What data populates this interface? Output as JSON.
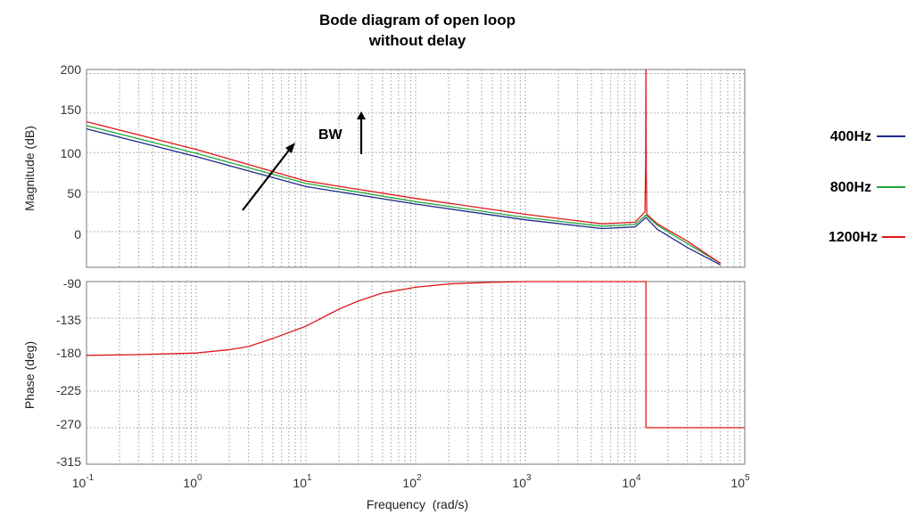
{
  "chart_data": [
    {
      "type": "line",
      "title_lines": [
        "Bode diagram of open loop",
        "without delay"
      ],
      "xlabel": "Frequency  (rad/s)",
      "ylabel": "Magnitude (dB)",
      "xscale": "log",
      "xlim": [
        0.1,
        100000
      ],
      "ylim": [
        -45,
        205
      ],
      "yticks": [
        "200",
        "150",
        "100",
        "50",
        "0"
      ],
      "grid": "dotted",
      "legend_position": "right",
      "series": [
        {
          "name": "400Hz",
          "color": "#1f2a8a",
          "x": [
            0.1,
            1,
            10,
            100,
            1000,
            5000,
            10000,
            12566,
            16000,
            30000,
            60000
          ],
          "y": [
            130,
            95,
            57,
            35,
            15,
            4,
            6,
            18,
            3,
            -20,
            -42
          ]
        },
        {
          "name": "800Hz",
          "color": "#22a83a",
          "x": [
            0.1,
            1,
            10,
            100,
            1000,
            5000,
            10000,
            12566,
            16000,
            30000,
            60000
          ],
          "y": [
            134,
            99,
            61,
            38,
            18,
            7,
            9,
            21,
            8,
            -15,
            -40
          ]
        },
        {
          "name": "1200Hz",
          "color": "#e01818",
          "x": [
            0.1,
            1,
            10,
            100,
            1000,
            5000,
            10000,
            12300,
            12500,
            12566,
            12650,
            12800,
            16000,
            30000,
            60000
          ],
          "y": [
            139,
            104,
            64,
            42,
            22,
            10,
            12,
            25,
            85,
            205,
            75,
            22,
            10,
            -12,
            -40
          ]
        }
      ],
      "annotations": [
        "BW"
      ]
    },
    {
      "type": "line",
      "xlabel": "Frequency  (rad/s)",
      "ylabel": "Phase (deg)",
      "xscale": "log",
      "xlim": [
        0.1,
        100000
      ],
      "xticks": [
        {
          "base": "10",
          "exp": "-1"
        },
        {
          "base": "10",
          "exp": "0"
        },
        {
          "base": "10",
          "exp": "1"
        },
        {
          "base": "10",
          "exp": "2"
        },
        {
          "base": "10",
          "exp": "3"
        },
        {
          "base": "10",
          "exp": "4"
        },
        {
          "base": "10",
          "exp": "5"
        }
      ],
      "ylim": [
        -315,
        -90
      ],
      "yticks": [
        "-90",
        "-135",
        "-180",
        "-225",
        "-270",
        "-315"
      ],
      "grid": "dotted",
      "series": [
        {
          "color": "#e01818",
          "x": [
            0.1,
            0.3,
            1,
            2,
            3,
            5,
            10,
            20,
            30,
            50,
            100,
            200,
            300,
            500,
            1000,
            5000,
            12566,
            12566,
            100000
          ],
          "y": [
            -181,
            -180,
            -178,
            -174,
            -170,
            -160,
            -145,
            -124,
            -114,
            -104,
            -97,
            -93,
            -92,
            -91,
            -90,
            -90,
            -90,
            -270,
            -270
          ]
        }
      ]
    }
  ]
}
